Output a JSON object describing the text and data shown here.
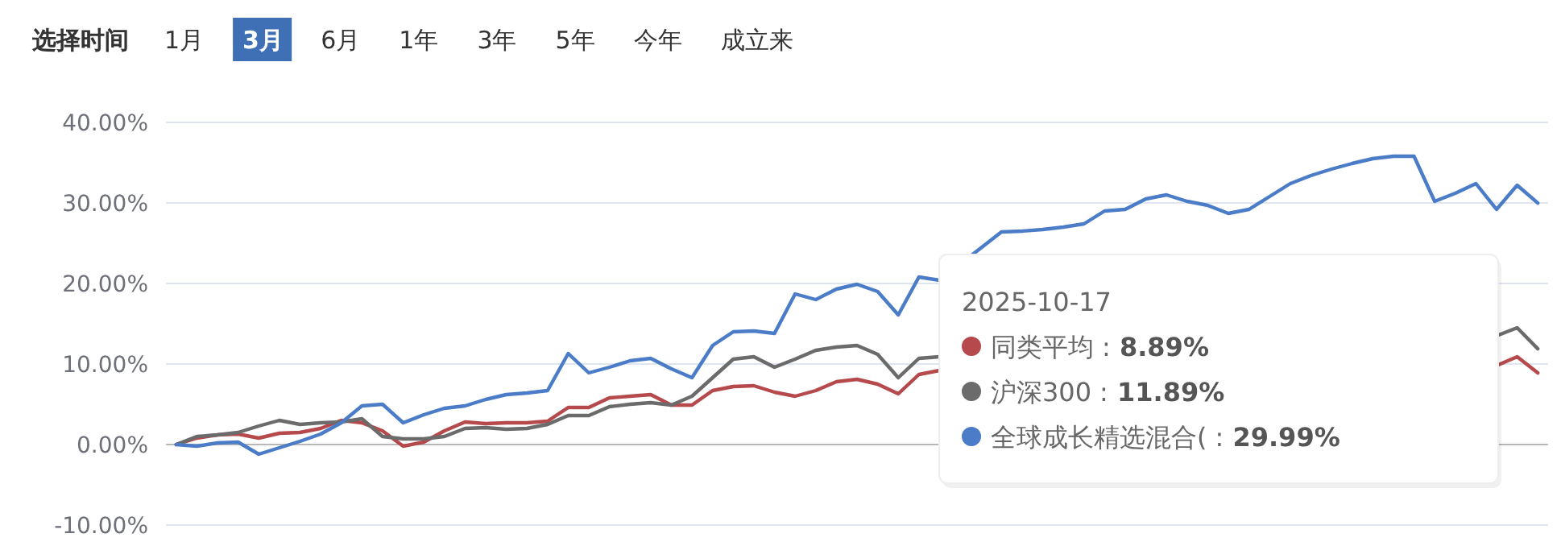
{
  "chart_data": {
    "type": "line",
    "categories": [
      null,
      null,
      null,
      null,
      null,
      null,
      null,
      null,
      null,
      null,
      null,
      null,
      null,
      null,
      null,
      null,
      null,
      null,
      null,
      null,
      null,
      null,
      null,
      null,
      null,
      null,
      null,
      null,
      null,
      null,
      null,
      null,
      null,
      null,
      null,
      null,
      null,
      null,
      null,
      null,
      null,
      null,
      null,
      null,
      null,
      null,
      null,
      null,
      null,
      null,
      null,
      null,
      null,
      null,
      null,
      null,
      null,
      null,
      null,
      null,
      null,
      null,
      null,
      null,
      null,
      null,
      null
    ],
    "series": [
      {
        "name": "同类平均",
        "color": "#b5494b",
        "values": [
          0,
          0.8,
          1.2,
          1.3,
          0.8,
          1.4,
          1.5,
          2.0,
          3.0,
          2.7,
          1.7,
          -0.2,
          0.3,
          1.7,
          2.8,
          2.6,
          2.7,
          2.7,
          2.9,
          4.6,
          4.6,
          5.8,
          6.0,
          6.2,
          4.9,
          4.9,
          6.7,
          7.2,
          7.3,
          6.5,
          6.0,
          6.7,
          7.8,
          8.1,
          7.5,
          6.3,
          8.7,
          9.2,
          null,
          null,
          null,
          null,
          null,
          null,
          null,
          null,
          null,
          null,
          null,
          null,
          null,
          null,
          null,
          null,
          null,
          null,
          null,
          null,
          null,
          null,
          null,
          null,
          null,
          null,
          9.8,
          10.9,
          8.89
        ]
      },
      {
        "name": "沪深300",
        "color": "#6b6b6b",
        "values": [
          0,
          1.0,
          1.2,
          1.5,
          2.3,
          3.0,
          2.5,
          2.7,
          2.8,
          3.2,
          1.0,
          0.7,
          0.7,
          1.0,
          2.0,
          2.1,
          1.9,
          2.0,
          2.5,
          3.6,
          3.6,
          4.7,
          5.0,
          5.2,
          4.9,
          6.0,
          8.3,
          10.6,
          10.9,
          9.6,
          10.6,
          11.7,
          12.1,
          12.3,
          11.2,
          8.3,
          10.7,
          10.9,
          null,
          null,
          null,
          null,
          null,
          null,
          null,
          null,
          null,
          null,
          null,
          null,
          null,
          null,
          null,
          null,
          null,
          null,
          null,
          null,
          null,
          null,
          null,
          null,
          null,
          null,
          13.5,
          14.5,
          11.89
        ]
      },
      {
        "name": "全球成长精选混合(",
        "color": "#4a7cc8",
        "values": [
          0,
          -0.2,
          0.2,
          0.3,
          -1.2,
          -0.4,
          0.4,
          1.3,
          2.7,
          4.8,
          5.0,
          2.7,
          3.7,
          4.5,
          4.8,
          5.6,
          6.2,
          6.4,
          6.7,
          11.3,
          8.9,
          9.6,
          10.4,
          10.7,
          9.4,
          8.3,
          12.3,
          14.0,
          14.1,
          13.8,
          18.7,
          18.0,
          19.3,
          19.9,
          19.0,
          16.1,
          20.8,
          20.4,
          null,
          null,
          26.4,
          26.5,
          26.7,
          27.0,
          27.4,
          29.0,
          29.2,
          30.5,
          31.0,
          30.2,
          29.7,
          28.7,
          29.2,
          30.8,
          32.4,
          33.4,
          34.2,
          34.9,
          35.5,
          35.8,
          35.8,
          30.2,
          31.2,
          32.4,
          29.2,
          32.2,
          29.99
        ]
      }
    ],
    "ylim": [
      -10,
      40
    ],
    "yticks": [
      {
        "value": -10,
        "label": "-10.00%"
      },
      {
        "value": 0,
        "label": "0.00%"
      },
      {
        "value": 10,
        "label": "10.00%"
      },
      {
        "value": 20,
        "label": "20.00%"
      },
      {
        "value": 30,
        "label": "30.00%"
      },
      {
        "value": 40,
        "label": "40.00%"
      }
    ],
    "grid": "y",
    "legend": "right",
    "legend_title": "2025-10-17",
    "annotations": [
      "选择时间",
      "1月",
      "3月",
      "6月",
      "1年",
      "3年",
      "5年",
      "今年",
      "成立来",
      ": 8.89%",
      ": 11.89%",
      ": 29.99%"
    ]
  }
}
